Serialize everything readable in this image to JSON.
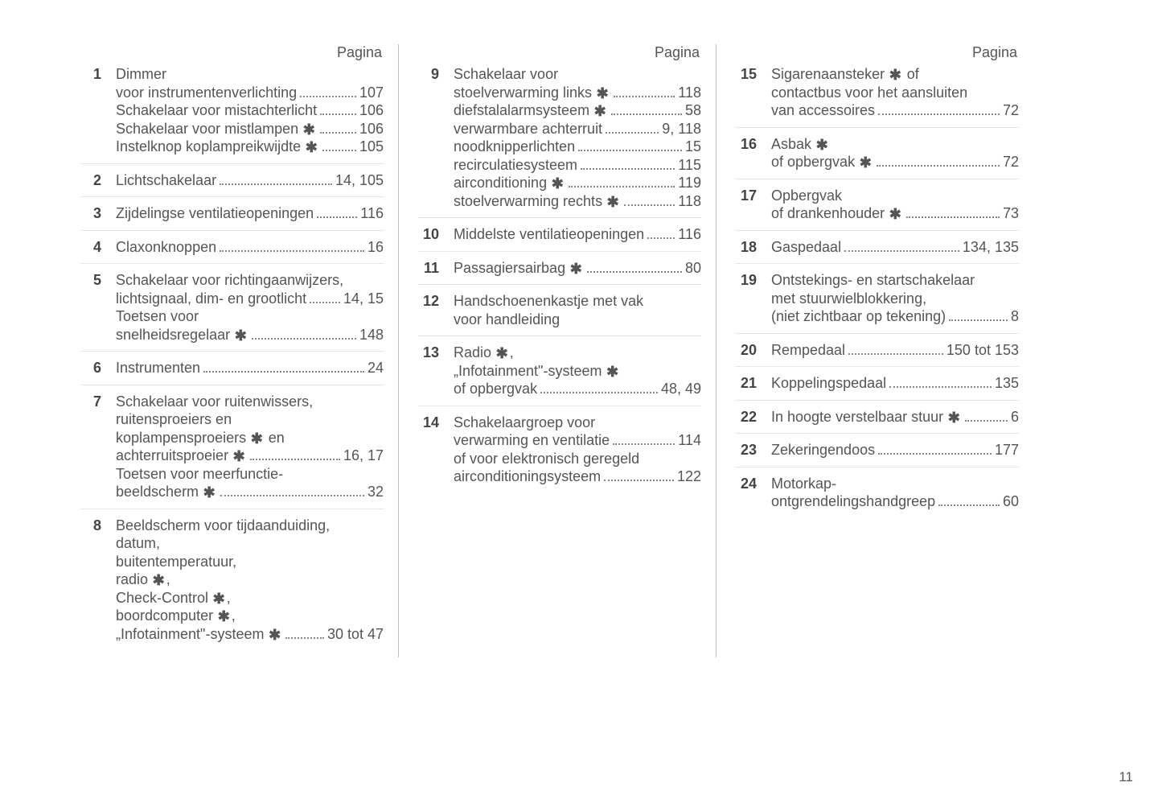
{
  "heading": "Pagina",
  "star_glyph": "✱",
  "page_number": "11",
  "columns": [
    [
      {
        "n": "1",
        "lines": [
          {
            "text": "Dimmer"
          },
          {
            "text": "voor instrumentenverlichting",
            "page": "107"
          },
          {
            "text": "Schakelaar voor mistachterlicht",
            "page": "106"
          },
          {
            "text": "Schakelaar voor mistlampen",
            "star": true,
            "page": "106"
          },
          {
            "text": "Instelknop koplampreikwijdte",
            "star": true,
            "page": "105"
          }
        ]
      },
      {
        "n": "2",
        "lines": [
          {
            "text": "Lichtschakelaar",
            "page": "14, 105"
          }
        ]
      },
      {
        "n": "3",
        "lines": [
          {
            "text": "Zijdelingse ventilatieopeningen",
            "page": "116"
          }
        ]
      },
      {
        "n": "4",
        "lines": [
          {
            "text": "Claxonknoppen",
            "page": "16"
          }
        ]
      },
      {
        "n": "5",
        "lines": [
          {
            "text": "Schakelaar voor richtingaanwijzers,"
          },
          {
            "text": "lichtsignaal, dim- en grootlicht",
            "page": "14, 15"
          },
          {
            "text": "Toetsen voor"
          },
          {
            "text": "snelheidsregelaar",
            "star": true,
            "page": "148"
          }
        ]
      },
      {
        "n": "6",
        "lines": [
          {
            "text": "Instrumenten",
            "page": "24"
          }
        ]
      },
      {
        "n": "7",
        "lines": [
          {
            "text": "Schakelaar voor ruitenwissers,"
          },
          {
            "text": "ruitensproeiers en"
          },
          {
            "text": "koplampensproeiers",
            "star": true,
            "suffix": " en"
          },
          {
            "text": "achterruitsproeier",
            "star": true,
            "page": "16, 17"
          },
          {
            "text": "Toetsen voor meerfunctie-"
          },
          {
            "text": "beeldscherm",
            "star": true,
            "page": "32"
          }
        ]
      },
      {
        "n": "8",
        "lines": [
          {
            "text": "Beeldscherm voor tijdaanduiding,"
          },
          {
            "text": "datum,"
          },
          {
            "text": "buitentemperatuur,"
          },
          {
            "text": "radio",
            "star": true,
            "suffix": ","
          },
          {
            "text": "Check-Control",
            "star": true,
            "suffix": ","
          },
          {
            "text": "boordcomputer",
            "star": true,
            "suffix": ","
          },
          {
            "text": "„Infotainment\"-systeem",
            "star": true,
            "page": "30 tot 47"
          }
        ]
      }
    ],
    [
      {
        "n": "9",
        "lines": [
          {
            "text": "Schakelaar voor"
          },
          {
            "text": "stoelverwarming links",
            "star": true,
            "page": "118"
          },
          {
            "text": "diefstalalarmsysteem",
            "star": true,
            "page": "58"
          },
          {
            "text": "verwarmbare achterruit",
            "page": "9, 118"
          },
          {
            "text": "noodknipperlichten",
            "page": "15"
          },
          {
            "text": "recirculatiesysteem",
            "page": "115"
          },
          {
            "text": "airconditioning",
            "star": true,
            "page": "119"
          },
          {
            "text": "stoelverwarming rechts",
            "star": true,
            "page": "118"
          }
        ]
      },
      {
        "n": "10",
        "lines": [
          {
            "text": "Middelste ventilatieopeningen",
            "page": "116"
          }
        ]
      },
      {
        "n": "11",
        "lines": [
          {
            "text": "Passagiersairbag",
            "star": true,
            "page": "80"
          }
        ]
      },
      {
        "n": "12",
        "lines": [
          {
            "text": "Handschoenenkastje met vak"
          },
          {
            "text": "voor handleiding"
          }
        ]
      },
      {
        "n": "13",
        "lines": [
          {
            "text": "Radio",
            "star": true,
            "suffix": ","
          },
          {
            "text": "„Infotainment\"-systeem",
            "star": true
          },
          {
            "text": "of opbergvak",
            "page": "48, 49"
          }
        ]
      },
      {
        "n": "14",
        "lines": [
          {
            "text": "Schakelaargroep voor"
          },
          {
            "text": "verwarming en ventilatie",
            "page": "114"
          },
          {
            "text": "of voor elektronisch geregeld"
          },
          {
            "text": "airconditioningsysteem",
            "page": "122"
          }
        ]
      }
    ],
    [
      {
        "n": "15",
        "lines": [
          {
            "text": "Sigarenaansteker",
            "star": true,
            "suffix": " of"
          },
          {
            "text": "contactbus voor het aansluiten"
          },
          {
            "text": "van accessoires",
            "page": "72"
          }
        ]
      },
      {
        "n": "16",
        "lines": [
          {
            "text": "Asbak",
            "star": true
          },
          {
            "text": "of opbergvak",
            "star": true,
            "page": "72"
          }
        ]
      },
      {
        "n": "17",
        "lines": [
          {
            "text": "Opbergvak"
          },
          {
            "text": "of drankenhouder",
            "star": true,
            "page": "73"
          }
        ]
      },
      {
        "n": "18",
        "lines": [
          {
            "text": "Gaspedaal",
            "page": "134, 135"
          }
        ]
      },
      {
        "n": "19",
        "lines": [
          {
            "text": "Ontstekings- en startschakelaar"
          },
          {
            "text": "met stuurwielblokkering,"
          },
          {
            "text": "(niet zichtbaar op tekening)",
            "page": "8"
          }
        ]
      },
      {
        "n": "20",
        "lines": [
          {
            "text": "Rempedaal",
            "page": "150 tot 153"
          }
        ]
      },
      {
        "n": "21",
        "lines": [
          {
            "text": "Koppelingspedaal",
            "page": "135"
          }
        ]
      },
      {
        "n": "22",
        "lines": [
          {
            "text": "In hoogte verstelbaar stuur",
            "star": true,
            "page": "6"
          }
        ]
      },
      {
        "n": "23",
        "lines": [
          {
            "text": "Zekeringendoos",
            "page": "177"
          }
        ]
      },
      {
        "n": "24",
        "lines": [
          {
            "text": "Motorkap-"
          },
          {
            "text": "ontgrendelingshandgreep",
            "page": "60"
          }
        ]
      }
    ]
  ]
}
